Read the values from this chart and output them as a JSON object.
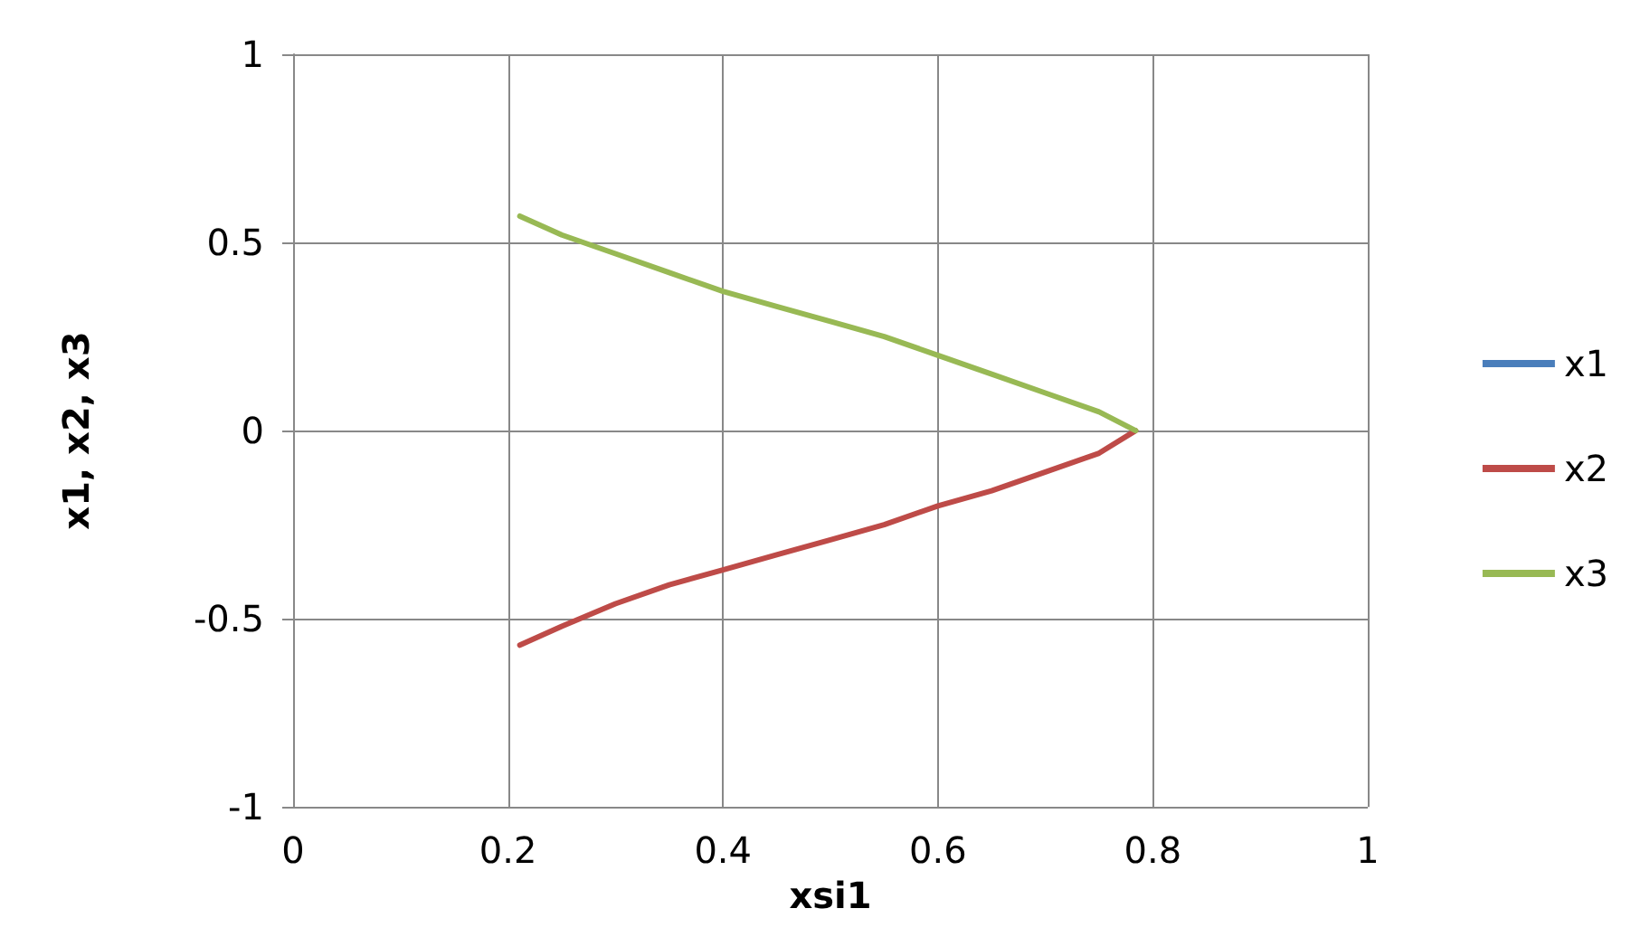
{
  "chart_data": {
    "type": "line",
    "xlabel": "xsi1",
    "ylabel": "x1, x2, x3",
    "x": [
      0.211,
      0.25,
      0.3,
      0.35,
      0.4,
      0.45,
      0.5,
      0.55,
      0.6,
      0.65,
      0.7,
      0.75,
      0.784
    ],
    "series": [
      {
        "name": "x1",
        "color": "#4a7ebb",
        "values": [
          null,
          null,
          null,
          null,
          null,
          null,
          null,
          null,
          null,
          null,
          null,
          null,
          null
        ]
      },
      {
        "name": "x2",
        "color": "#be4b48",
        "values": [
          -0.57,
          -0.52,
          -0.46,
          -0.41,
          -0.37,
          -0.33,
          -0.29,
          -0.25,
          -0.2,
          -0.16,
          -0.11,
          -0.06,
          0
        ]
      },
      {
        "name": "x3",
        "color": "#98b954",
        "values": [
          0.57,
          0.52,
          0.47,
          0.42,
          0.37,
          0.33,
          0.29,
          0.25,
          0.2,
          0.15,
          0.1,
          0.05,
          0
        ]
      }
    ],
    "xlim": [
      0,
      1
    ],
    "xticks": [
      0,
      0.2,
      0.4,
      0.6,
      0.8,
      1
    ],
    "ylim": [
      -1,
      1
    ],
    "yticks": [
      -1,
      -0.5,
      0,
      0.5,
      1
    ],
    "grid": true,
    "legend": "right",
    "marker": "none",
    "line_style": "solid"
  }
}
